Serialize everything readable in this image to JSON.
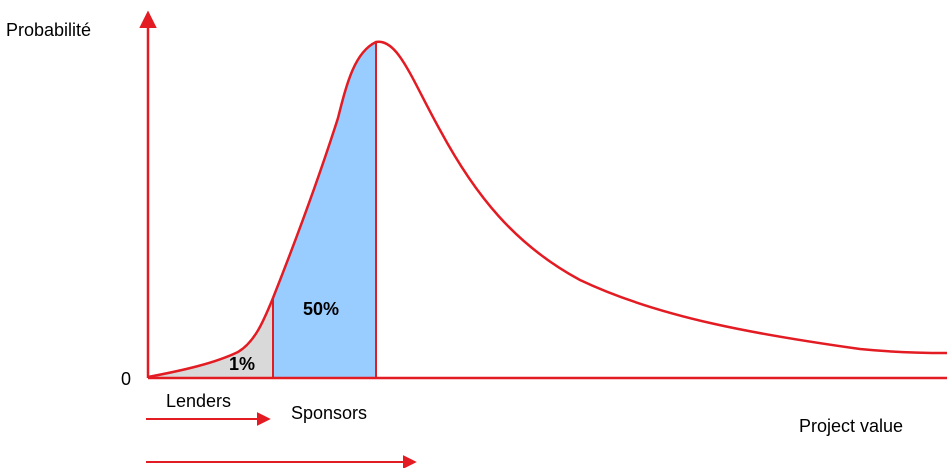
{
  "labels": {
    "y_axis": "Probabilité",
    "zero": "0",
    "x_axis": "Project value",
    "lenders": "Lenders",
    "sponsors": "Sponsors",
    "lenders_share": "1%",
    "sponsors_share": "50%"
  },
  "colors": {
    "curve": "#e31b23",
    "axis": "#e31b23",
    "lenders_fill": "#d9d9d9",
    "sponsors_fill": "#99ccff",
    "text": "#000000"
  }
}
